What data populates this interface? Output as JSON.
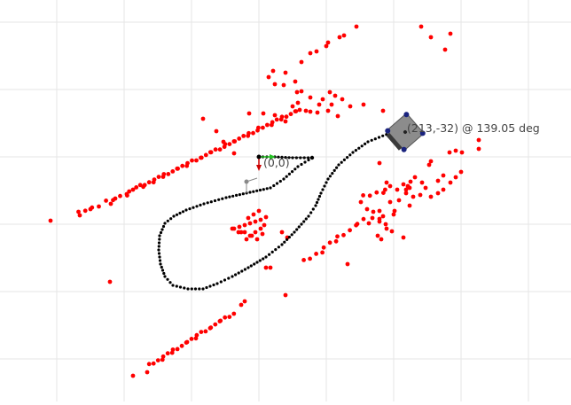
{
  "canvas": {
    "background": "#ffffff",
    "grid_color": "#e6e6e6"
  },
  "robot": {
    "x": 213,
    "y": -32,
    "heading_deg": 139.05,
    "pose_label": "(213,-32) @ 139.05 deg",
    "body_color": "#8c8c8c",
    "sensor_color": "#1a237e"
  },
  "origin": {
    "label": "(0,0)",
    "x_axis_color": "#23c023",
    "y_axis_color": "#cc0000"
  },
  "trajectory": {
    "point_color": "#000000",
    "fill_color": "#1aa31a"
  },
  "obstacle_points": {
    "color": "#ff0000"
  }
}
